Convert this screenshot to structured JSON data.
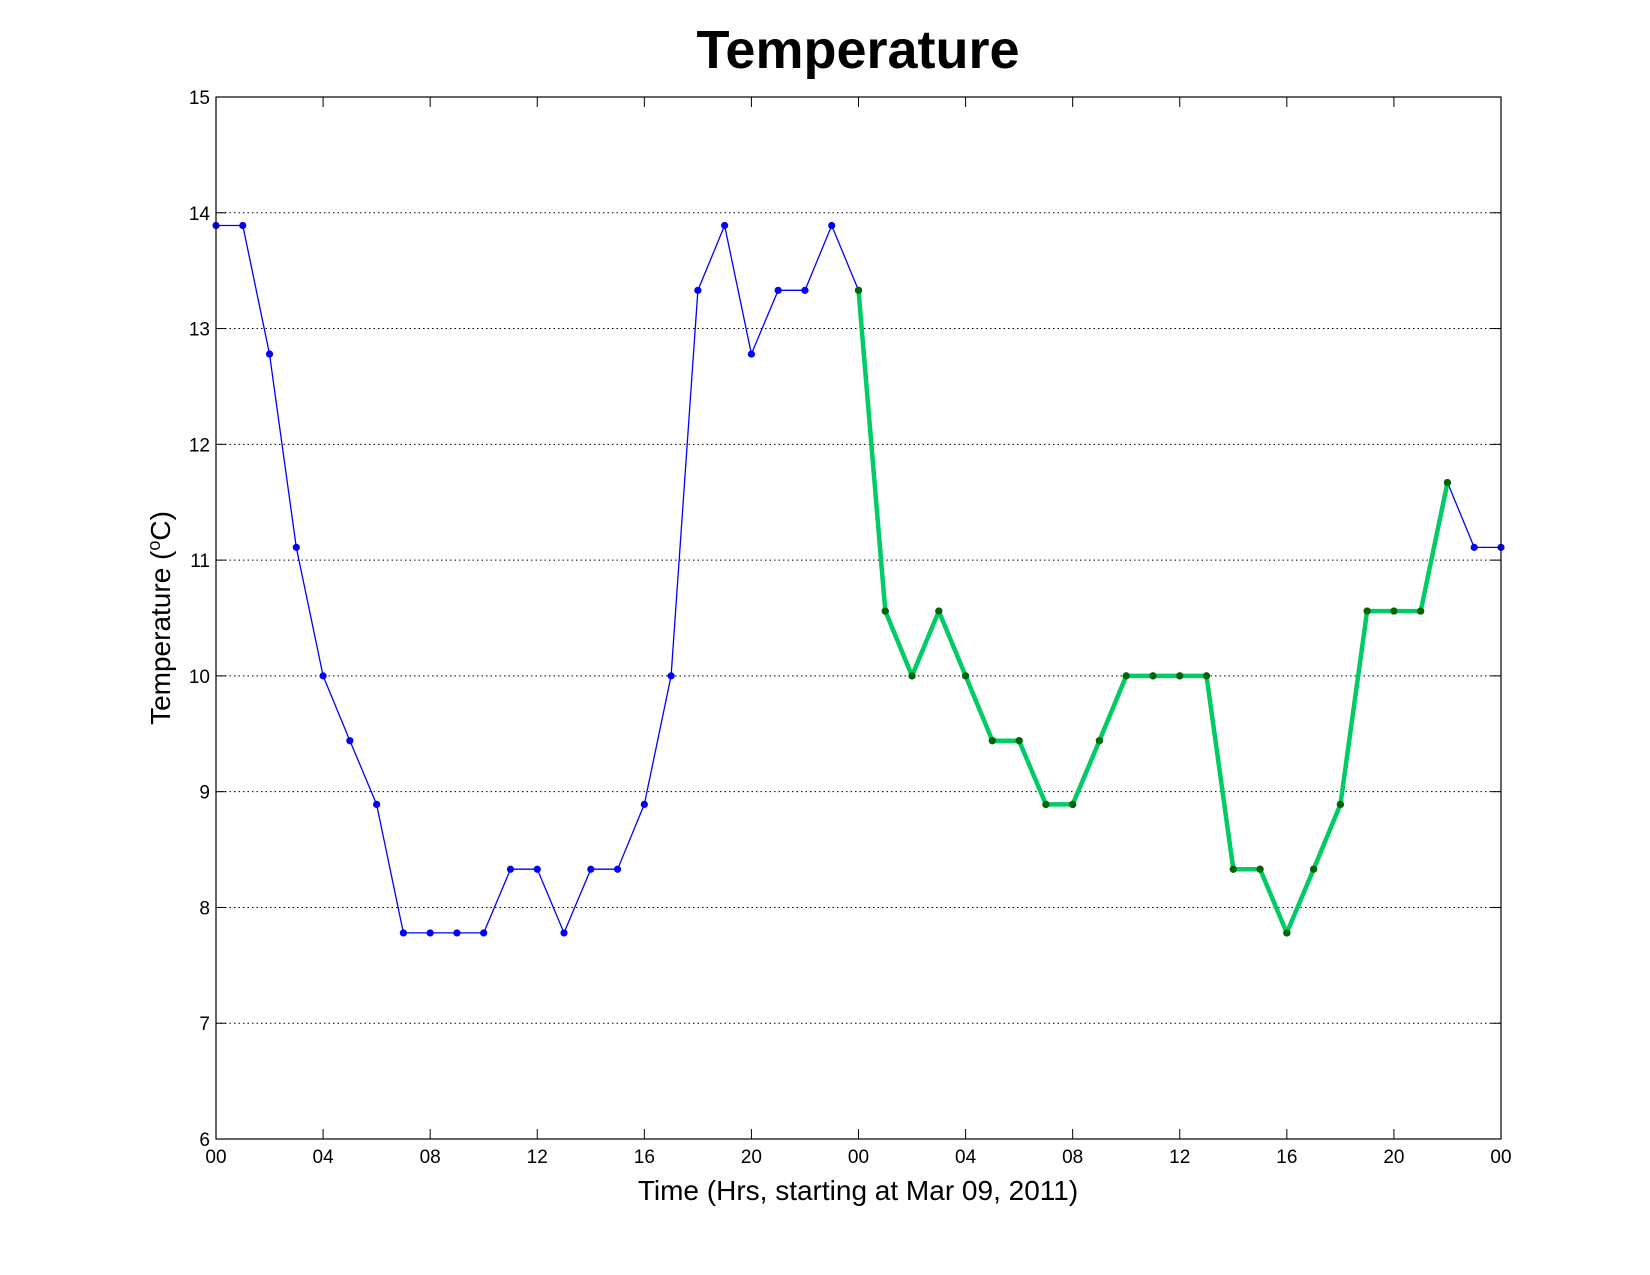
{
  "chart_data": {
    "type": "line",
    "title": "Temperature",
    "xlabel": "Time (Hrs, starting at Mar 09, 2011)",
    "ylabel_main": "Temperature (",
    "ylabel_degree": "o",
    "ylabel_unit": "C)",
    "x_unit": "hours",
    "xlim": [
      0,
      48
    ],
    "ylim": [
      6,
      15
    ],
    "y_ticks": [
      6,
      7,
      8,
      9,
      10,
      11,
      12,
      13,
      14,
      15
    ],
    "x_ticks": [
      {
        "x": 0,
        "label": "00"
      },
      {
        "x": 4,
        "label": "04"
      },
      {
        "x": 8,
        "label": "08"
      },
      {
        "x": 12,
        "label": "12"
      },
      {
        "x": 16,
        "label": "16"
      },
      {
        "x": 20,
        "label": "20"
      },
      {
        "x": 24,
        "label": "00"
      },
      {
        "x": 28,
        "label": "04"
      },
      {
        "x": 32,
        "label": "08"
      },
      {
        "x": 36,
        "label": "12"
      },
      {
        "x": 40,
        "label": "16"
      },
      {
        "x": 44,
        "label": "20"
      },
      {
        "x": 48,
        "label": "00"
      }
    ],
    "grid": "horizontal-dotted",
    "series": [
      {
        "color": "#0000ff",
        "marker_color": "#0000ff",
        "line_width": "thin",
        "x": [
          0,
          1,
          2,
          3,
          4,
          5,
          6,
          7,
          8,
          9,
          10,
          11,
          12,
          13,
          14,
          15,
          16,
          17,
          18,
          19,
          20,
          21,
          22,
          23,
          24,
          25,
          26,
          27,
          28,
          29,
          30,
          31,
          32,
          33,
          34,
          35,
          36,
          37,
          38,
          39,
          40,
          41,
          42,
          43,
          44,
          45,
          46,
          47,
          48
        ],
        "values": [
          13.89,
          13.89,
          12.78,
          11.11,
          10.0,
          9.44,
          8.89,
          7.78,
          7.78,
          7.78,
          7.78,
          8.33,
          8.33,
          7.78,
          8.33,
          8.33,
          8.89,
          10.0,
          13.33,
          13.89,
          12.78,
          13.33,
          13.33,
          13.89,
          13.33,
          10.56,
          10.0,
          10.56,
          10.0,
          9.44,
          9.44,
          8.89,
          8.89,
          9.44,
          10.0,
          10.0,
          10.0,
          10.0,
          8.33,
          8.33,
          7.78,
          8.33,
          8.89,
          10.56,
          10.56,
          10.56,
          11.67,
          11.11,
          11.11
        ]
      },
      {
        "color": "#00cc66",
        "marker_color": "#006600",
        "line_width": "thick",
        "x": [
          24,
          25,
          26,
          27,
          28,
          29,
          30,
          31,
          32,
          33,
          34,
          35,
          36,
          37,
          38,
          39,
          40,
          41,
          42,
          43,
          44,
          45,
          46
        ],
        "values": [
          13.33,
          10.56,
          10.0,
          10.56,
          10.0,
          9.44,
          9.44,
          8.89,
          8.89,
          9.44,
          10.0,
          10.0,
          10.0,
          10.0,
          8.33,
          8.33,
          7.78,
          8.33,
          8.89,
          10.56,
          10.56,
          10.56,
          11.67
        ]
      }
    ]
  }
}
